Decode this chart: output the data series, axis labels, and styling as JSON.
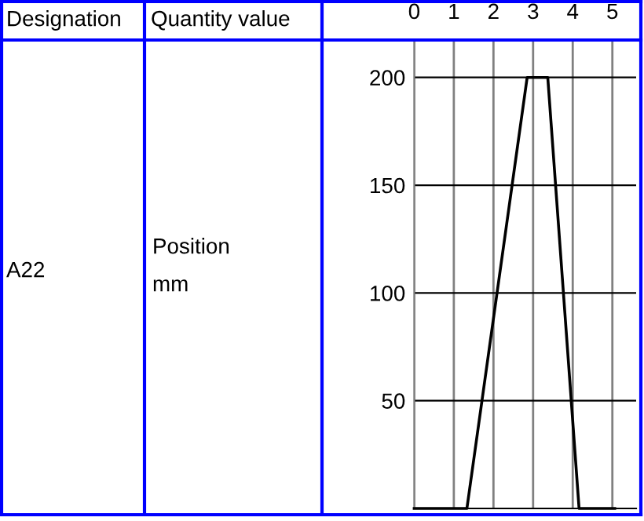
{
  "chart_data": {
    "type": "line",
    "annotations": [
      "Designation",
      "Quantity value",
      "A22",
      "Position",
      "mm"
    ],
    "x": [
      0,
      1.33,
      2.85,
      3.37,
      4.16,
      5.06
    ],
    "values": [
      0,
      0,
      200,
      200,
      0,
      0
    ],
    "color": "#000000",
    "xlim": [
      0,
      5.6
    ],
    "xticks": [
      0,
      1,
      2,
      3,
      4,
      5
    ],
    "ylim": [
      0,
      217
    ],
    "yticks": [
      50,
      100,
      150,
      200
    ],
    "grid": true,
    "marker": "none",
    "line_style": "solid"
  }
}
